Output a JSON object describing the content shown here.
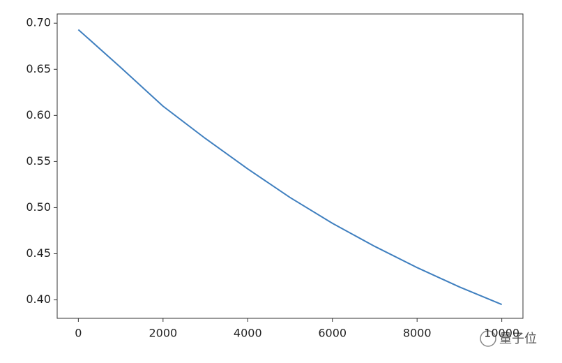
{
  "chart_data": {
    "type": "line",
    "x": [
      0,
      1000,
      2000,
      3000,
      4000,
      5000,
      6000,
      7000,
      8000,
      9000,
      10000
    ],
    "series": [
      {
        "color": "#3f7fbf",
        "values": [
          0.693,
          0.652,
          0.61,
          0.575,
          0.542,
          0.511,
          0.483,
          0.458,
          0.435,
          0.414,
          0.395
        ]
      }
    ],
    "xlim": [
      -500,
      10500
    ],
    "xticks": [
      0,
      2000,
      4000,
      6000,
      8000,
      10000
    ],
    "ylim": [
      0.38,
      0.71
    ],
    "yticks": [
      {
        "value": 0.4,
        "label": "0.40"
      },
      {
        "value": 0.45,
        "label": "0.45"
      },
      {
        "value": 0.5,
        "label": "0.50"
      },
      {
        "value": 0.55,
        "label": "0.55"
      },
      {
        "value": 0.6,
        "label": "0.60"
      },
      {
        "value": 0.65,
        "label": "0.65"
      },
      {
        "value": 0.7,
        "label": "0.70"
      }
    ],
    "grid": false
  },
  "watermark": "量子位"
}
